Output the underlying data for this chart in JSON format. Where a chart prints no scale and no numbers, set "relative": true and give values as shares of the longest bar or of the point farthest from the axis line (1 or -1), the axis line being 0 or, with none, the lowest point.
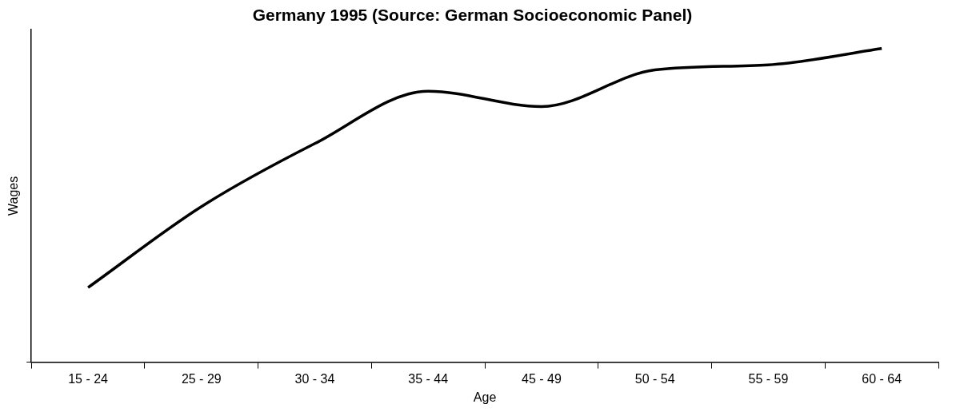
{
  "chart_data": {
    "type": "line",
    "title": "Germany 1995 (Source: German Socioeconomic Panel)",
    "xlabel": "Age",
    "ylabel": "Wages",
    "relative": true,
    "categories": [
      "15 - 24",
      "25 - 29",
      "30 - 34",
      "35 - 44",
      "45 - 49",
      "50 - 54",
      "55 - 59",
      "60 - 64"
    ],
    "series": [
      {
        "color": "#000000",
        "values": [
          0.238,
          0.496,
          0.697,
          0.864,
          0.815,
          0.932,
          0.948,
          1
        ]
      }
    ],
    "grid": false,
    "legend": false,
    "marker": "none",
    "line_style": "solid"
  }
}
